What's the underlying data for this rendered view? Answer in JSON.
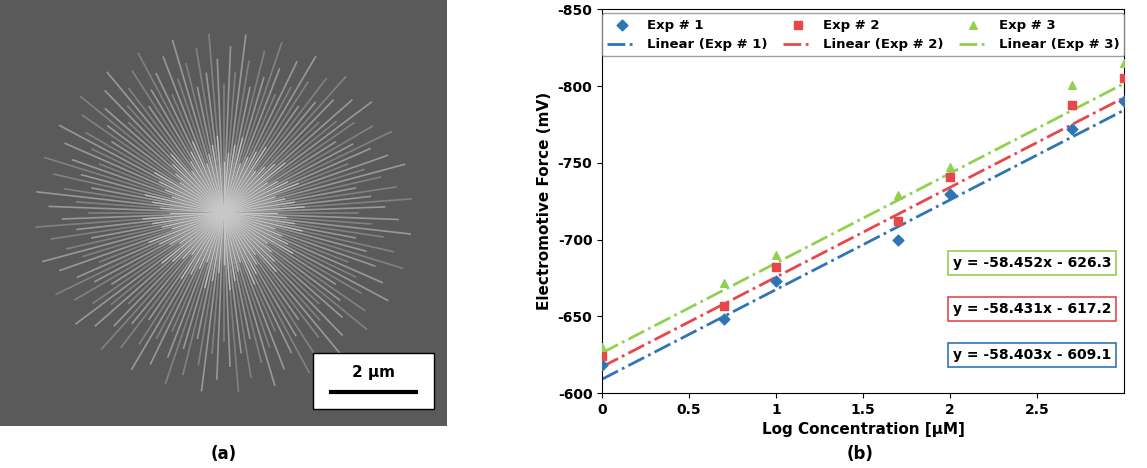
{
  "chart_data": {
    "type": "scatter",
    "x_label": "Log Concentration [μM]",
    "y_label": "Electromotive Force (mV)",
    "xlim": [
      0,
      3
    ],
    "xticks": [
      0,
      0.5,
      1,
      1.5,
      2,
      2.5
    ],
    "ylim": [
      -600,
      -850
    ],
    "yticks": [
      -600,
      -650,
      -700,
      -750,
      -800,
      -850
    ],
    "grid": false,
    "legend": "upper center",
    "x": [
      0,
      0.699,
      1,
      1.699,
      2,
      2.699,
      3
    ],
    "series": [
      {
        "name": "Exp # 1",
        "color": "#2E75B6",
        "marker": "diamond",
        "values": [
          -618,
          -648,
          -673,
          -700,
          -730,
          -772,
          -790
        ]
      },
      {
        "name": "Exp # 2",
        "color": "#E8474A",
        "marker": "square",
        "values": [
          -624,
          -657,
          -682,
          -712,
          -741,
          -788,
          -805
        ]
      },
      {
        "name": "Exp # 3",
        "color": "#92D050",
        "marker": "triangle",
        "values": [
          -630,
          -672,
          -690,
          -729,
          -747,
          -801,
          -815
        ]
      }
    ],
    "trendlines": [
      {
        "name": "Linear (Exp # 1)",
        "color": "#2E75B6",
        "line_style": "dashdot",
        "slope": -58.403,
        "intercept": -609.1,
        "equation": "y = -58.403x - 609.1"
      },
      {
        "name": "Linear (Exp # 2)",
        "color": "#E8474A",
        "line_style": "dashdot",
        "slope": -58.431,
        "intercept": -617.2,
        "equation": "y = -58.431x - 617.2"
      },
      {
        "name": "Linear (Exp # 3)",
        "color": "#92D050",
        "line_style": "dashdot",
        "slope": -58.452,
        "intercept": -626.3,
        "equation": "y = -58.452x - 626.3"
      }
    ]
  },
  "panel_labels": [
    "(a)",
    "(b)"
  ],
  "image": {
    "scale_bar": "2 μm"
  }
}
